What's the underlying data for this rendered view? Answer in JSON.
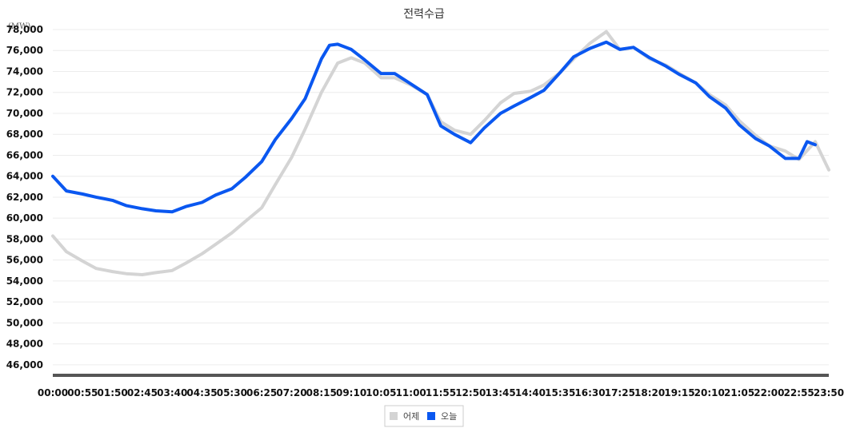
{
  "chart_data": {
    "type": "line",
    "title": "전력수급",
    "unit_label": "(MW)",
    "ylim": [
      45000,
      78000
    ],
    "yticks": [
      "46,000",
      "48,000",
      "50,000",
      "52,000",
      "54,000",
      "56,000",
      "58,000",
      "60,000",
      "62,000",
      "64,000",
      "66,000",
      "68,000",
      "70,000",
      "72,000",
      "74,000",
      "76,000",
      "78,000"
    ],
    "ytick_values": [
      46000,
      48000,
      50000,
      52000,
      54000,
      56000,
      58000,
      60000,
      62000,
      64000,
      66000,
      68000,
      70000,
      72000,
      74000,
      76000,
      78000
    ],
    "xlim_minutes": [
      0,
      1430
    ],
    "xticks": [
      "00:00",
      "00:55",
      "01:50",
      "02:45",
      "03:40",
      "04:35",
      "05:30",
      "06:25",
      "07:20",
      "08:15",
      "09:10",
      "10:05",
      "11:00",
      "11:55",
      "12:50",
      "13:45",
      "14:40",
      "15:35",
      "16:30",
      "17:25",
      "18:20",
      "19:15",
      "20:10",
      "21:05",
      "22:00",
      "22:55",
      "23:50"
    ],
    "grid": true,
    "legend_position": "bottom-center",
    "series": [
      {
        "name": "어제",
        "color": "#d4d4d4",
        "x": [
          "00:00",
          "00:25",
          "00:55",
          "01:20",
          "01:50",
          "02:15",
          "02:45",
          "03:10",
          "03:40",
          "04:05",
          "04:35",
          "05:00",
          "05:30",
          "05:55",
          "06:25",
          "06:50",
          "07:20",
          "07:45",
          "08:15",
          "08:45",
          "09:10",
          "09:35",
          "10:05",
          "10:30",
          "11:00",
          "11:30",
          "11:55",
          "12:20",
          "12:50",
          "13:15",
          "13:45",
          "14:10",
          "14:40",
          "15:05",
          "15:35",
          "16:00",
          "16:30",
          "17:00",
          "17:25",
          "17:50",
          "18:20",
          "18:50",
          "19:15",
          "19:45",
          "20:10",
          "20:40",
          "21:05",
          "21:35",
          "22:00",
          "22:30",
          "22:55",
          "23:25",
          "23:50"
        ],
        "values": [
          58300,
          56800,
          55900,
          55200,
          54900,
          54700,
          54600,
          54800,
          55000,
          55700,
          56600,
          57500,
          58600,
          59700,
          61000,
          63200,
          65800,
          68500,
          72000,
          74800,
          75300,
          74800,
          73400,
          73400,
          72700,
          71800,
          69200,
          68400,
          68000,
          69300,
          71000,
          71900,
          72100,
          72700,
          73900,
          75200,
          76700,
          77800,
          76100,
          76300,
          75200,
          74600,
          73800,
          72900,
          71800,
          70800,
          69300,
          67900,
          66900,
          66400,
          65600,
          67300,
          64600
        ]
      },
      {
        "name": "오늘",
        "color": "#0a57f0",
        "x": [
          "00:00",
          "00:25",
          "00:55",
          "01:20",
          "01:50",
          "02:15",
          "02:45",
          "03:10",
          "03:40",
          "04:05",
          "04:35",
          "05:00",
          "05:30",
          "05:55",
          "06:25",
          "06:50",
          "07:20",
          "07:45",
          "08:15",
          "08:30",
          "08:45",
          "09:10",
          "09:35",
          "10:05",
          "10:30",
          "11:00",
          "11:30",
          "11:55",
          "12:20",
          "12:50",
          "13:15",
          "13:45",
          "14:10",
          "14:40",
          "15:05",
          "15:35",
          "16:00",
          "16:30",
          "17:00",
          "17:25",
          "17:50",
          "18:20",
          "18:50",
          "19:15",
          "19:45",
          "20:10",
          "20:40",
          "21:05",
          "21:35",
          "22:00",
          "22:30",
          "22:55",
          "23:10",
          "23:25"
        ],
        "values": [
          64000,
          62600,
          62300,
          62000,
          61700,
          61200,
          60900,
          60700,
          60600,
          61100,
          61500,
          62200,
          62800,
          63900,
          65400,
          67500,
          69500,
          71400,
          75200,
          76500,
          76600,
          76100,
          75100,
          73800,
          73800,
          72800,
          71800,
          68800,
          68000,
          67200,
          68600,
          70000,
          70700,
          71500,
          72200,
          73900,
          75400,
          76200,
          76800,
          76100,
          76300,
          75300,
          74500,
          73700,
          72900,
          71600,
          70500,
          68900,
          67600,
          66900,
          65700,
          65700,
          67300,
          67000
        ]
      }
    ]
  }
}
